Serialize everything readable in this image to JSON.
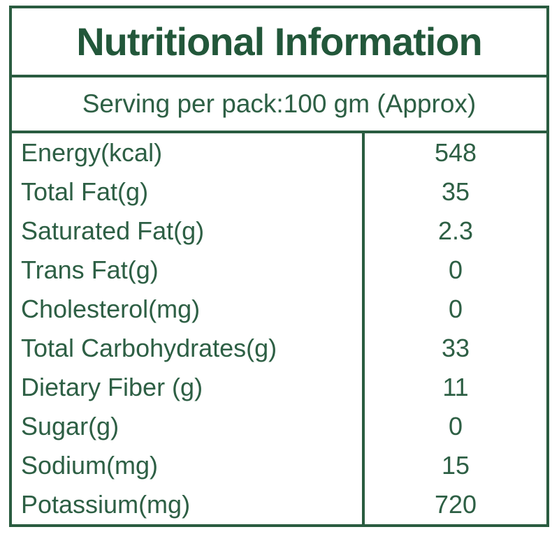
{
  "header": {
    "title": "Nutritional Information",
    "serving_line": "Serving per pack:100 gm (Approx)"
  },
  "table": {
    "rows": [
      {
        "label": "Energy(kcal)",
        "value": "548"
      },
      {
        "label": "Total Fat(g)",
        "value": "35"
      },
      {
        "label": "Saturated Fat(g)",
        "value": "2.3"
      },
      {
        "label": "Trans Fat(g)",
        "value": "0"
      },
      {
        "label": "Cholesterol(mg)",
        "value": "0"
      },
      {
        "label": "Total Carbohydrates(g)",
        "value": "33"
      },
      {
        "label": "Dietary Fiber (g)",
        "value": "11"
      },
      {
        "label": "Sugar(g)",
        "value": "0"
      },
      {
        "label": "Sodium(mg)",
        "value": "15"
      },
      {
        "label": "Potassium(mg)",
        "value": "720"
      }
    ]
  },
  "colors": {
    "border": "#2a5c40",
    "title": "#22573a",
    "text": "#2d5f44",
    "background": "#ffffff"
  }
}
